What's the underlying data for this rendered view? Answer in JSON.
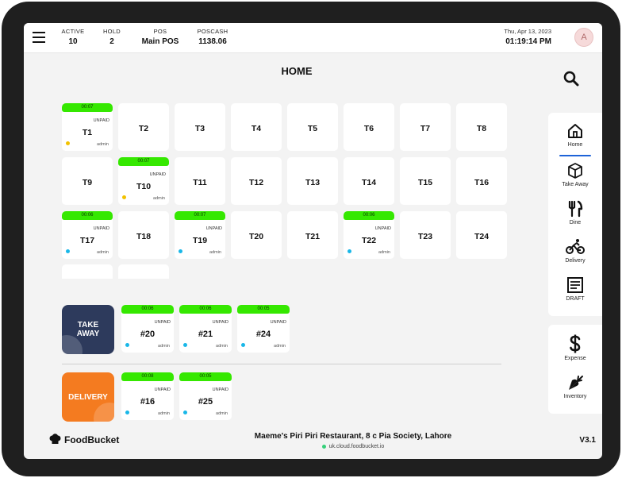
{
  "topbar": {
    "stats": [
      {
        "label": "ACTIVE",
        "value": "10"
      },
      {
        "label": "HOLD",
        "value": "2"
      },
      {
        "label": "POS",
        "value": "Main POS"
      },
      {
        "label": "POSCASH",
        "value": "1138.06"
      }
    ],
    "date": "Thu, Apr 13, 2023",
    "time": "01:19:14 PM",
    "avatar_letter": "A"
  },
  "page_title": "HOME",
  "tables": [
    {
      "name": "T1",
      "timer": "00:07",
      "status": "UNPAID",
      "by": "admin",
      "dot": "#f2c200"
    },
    {
      "name": "T2"
    },
    {
      "name": "T3"
    },
    {
      "name": "T4"
    },
    {
      "name": "T5"
    },
    {
      "name": "T6"
    },
    {
      "name": "T7"
    },
    {
      "name": "T8"
    },
    {
      "name": "T9"
    },
    {
      "name": "T10",
      "timer": "00:07",
      "status": "UNPAID",
      "by": "admin",
      "dot": "#f2c200"
    },
    {
      "name": "T11"
    },
    {
      "name": "T12"
    },
    {
      "name": "T13"
    },
    {
      "name": "T14"
    },
    {
      "name": "T15"
    },
    {
      "name": "T16"
    },
    {
      "name": "T17",
      "timer": "00:06",
      "status": "UNPAID",
      "by": "admin",
      "dot": "#19b7e8"
    },
    {
      "name": "T18"
    },
    {
      "name": "T19",
      "timer": "00:07",
      "status": "UNPAID",
      "by": "admin",
      "dot": "#19b7e8"
    },
    {
      "name": "T20"
    },
    {
      "name": "T21"
    },
    {
      "name": "T22",
      "timer": "00:06",
      "status": "UNPAID",
      "by": "admin",
      "dot": "#19b7e8"
    },
    {
      "name": "T23"
    },
    {
      "name": "T24"
    }
  ],
  "takeaway": {
    "label_line1": "TAKE",
    "label_line2": "AWAY",
    "color": "#2d3a5c",
    "orders": [
      {
        "name": "#20",
        "timer": "00:06",
        "status": "UNPAID",
        "by": "admin"
      },
      {
        "name": "#21",
        "timer": "00:06",
        "status": "UNPAID",
        "by": "admin"
      },
      {
        "name": "#24",
        "timer": "00:05",
        "status": "UNPAID",
        "by": "admin"
      }
    ]
  },
  "delivery": {
    "label": "DELIVERY",
    "color": "#f47b20",
    "orders": [
      {
        "name": "#16",
        "timer": "00:08",
        "status": "UNPAID",
        "by": "admin"
      },
      {
        "name": "#25",
        "timer": "00:05",
        "status": "UNPAID",
        "by": "admin"
      }
    ]
  },
  "sidenav": {
    "items": [
      {
        "label": "Home",
        "icon": "home-icon"
      },
      {
        "label": "Take Away",
        "icon": "box-icon"
      },
      {
        "label": "Dine",
        "icon": "utensils-icon"
      },
      {
        "label": "Delivery",
        "icon": "bicycle-icon"
      },
      {
        "label": "DRAFT",
        "icon": "document-icon"
      }
    ],
    "items2": [
      {
        "label": "Expense",
        "icon": "dollar-icon"
      },
      {
        "label": "Inventory",
        "icon": "carrot-icon"
      }
    ],
    "active_color": "#1e63d8"
  },
  "footer": {
    "brand": "FoodBucket",
    "restaurant": "Maeme's Piri Piri Restaurant, 8 c Pia Society, Lahore",
    "url": "uk.cloud.foodbucket.io",
    "version": "V3.1"
  },
  "colors": {
    "timer_green": "#35e800",
    "background": "#f3f3f3"
  }
}
